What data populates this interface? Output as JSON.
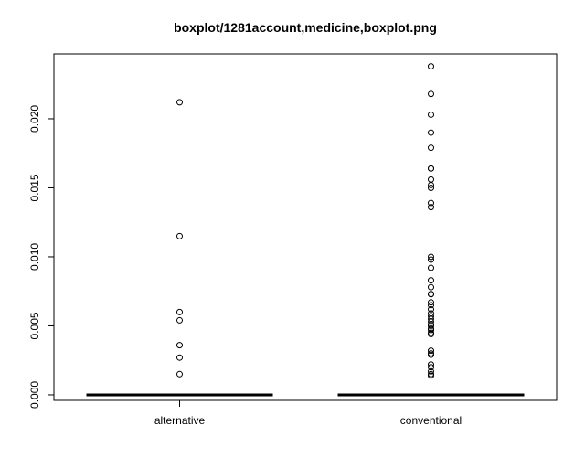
{
  "chart_data": {
    "type": "boxplot",
    "title": "boxplot/1281account,medicine,boxplot.png",
    "xlabel": "",
    "ylabel": "",
    "categories": [
      "alternative",
      "conventional"
    ],
    "ylim": [
      -0.0004,
      0.0247
    ],
    "y_ticks": [
      0.0,
      0.005,
      0.01,
      0.015,
      0.02
    ],
    "y_tick_labels": [
      "0.000",
      "0.005",
      "0.010",
      "0.015",
      "0.020"
    ],
    "series": [
      {
        "category": "alternative",
        "min": 0.0,
        "q1": 0.0,
        "median": 0.0,
        "q3": 0.0,
        "max": 0.0,
        "outliers": [
          0.0212,
          0.0115,
          0.006,
          0.0054,
          0.0036,
          0.0027,
          0.0015
        ]
      },
      {
        "category": "conventional",
        "min": 0.0,
        "q1": 0.0,
        "median": 0.0,
        "q3": 0.0,
        "max": 0.0,
        "outliers": [
          0.0238,
          0.0218,
          0.0203,
          0.019,
          0.0179,
          0.0164,
          0.0164,
          0.0156,
          0.0152,
          0.015,
          0.0139,
          0.0136,
          0.01,
          0.0098,
          0.0092,
          0.0083,
          0.0078,
          0.0073,
          0.0073,
          0.0067,
          0.0065,
          0.0062,
          0.0059,
          0.0057,
          0.0055,
          0.0053,
          0.0051,
          0.005,
          0.0048,
          0.0047,
          0.0045,
          0.0044,
          0.0032,
          0.003,
          0.0029,
          0.0022,
          0.002,
          0.0017,
          0.0015,
          0.0014
        ]
      }
    ],
    "grid": false,
    "legend": "none"
  }
}
